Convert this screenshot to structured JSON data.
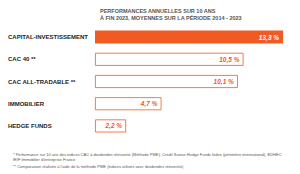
{
  "chart_data": {
    "type": "bar",
    "orientation": "horizontal",
    "title": "PERFORMANCES ANNUELLES SUR 10 ANS\nÀ FIN 2023, MOYENNES SUR LA PÉRIODE 2014 - 2023",
    "categories": [
      "CAPITAL-INVESTISSEMENT",
      "CAC 40 **",
      "CAC ALL-TRADABLE **",
      "IMMOBILIER",
      "HEDGE FUNDS"
    ],
    "values": [
      13.3,
      10.5,
      10.1,
      4.7,
      2.2
    ],
    "value_labels": [
      "13,3 %",
      "10,5 %",
      "10,1 %",
      "4,7 %",
      "2,2 %"
    ],
    "colors": [
      "#f15a22",
      "#ffffff",
      "#ffffff",
      "#ffffff",
      "#ffffff"
    ],
    "xlim": [
      0,
      14
    ],
    "data_labels": true,
    "tick_labels": "y",
    "grid": false,
    "annotations": [
      "* Performance sur 10 ans des indices CAC à dividendes réinvestis (Méthode PME), Credit Suisse Hedge Funds Index (périmètre international), EDHEC IEIF Immobilier d'entreprise France",
      "** Comparaison réalisée à l'aide de la méthode PME (indices utilisés avec dividendes réinvestis)"
    ]
  }
}
